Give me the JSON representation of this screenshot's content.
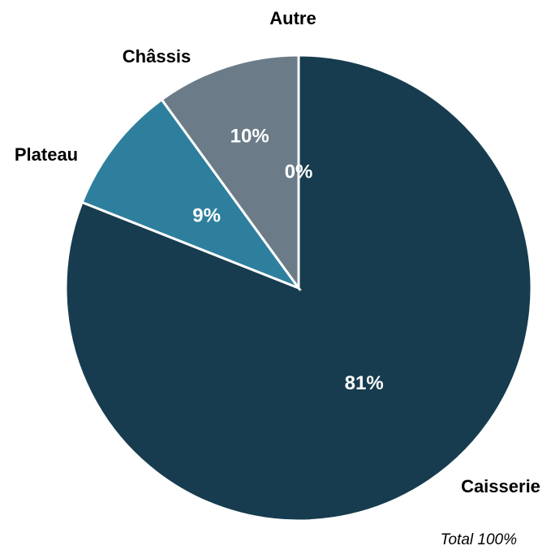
{
  "chart_data": {
    "type": "pie",
    "categories": [
      "Caisserie",
      "Plateau",
      "Châssis",
      "Autre"
    ],
    "values": [
      81,
      9,
      10,
      0
    ],
    "value_labels": [
      "81%",
      "9%",
      "10%",
      "0%"
    ],
    "colors": [
      "#173c4f",
      "#2e7f9d",
      "#6b7c88",
      "#8a9aa5"
    ],
    "annotation": "Total 100%"
  }
}
